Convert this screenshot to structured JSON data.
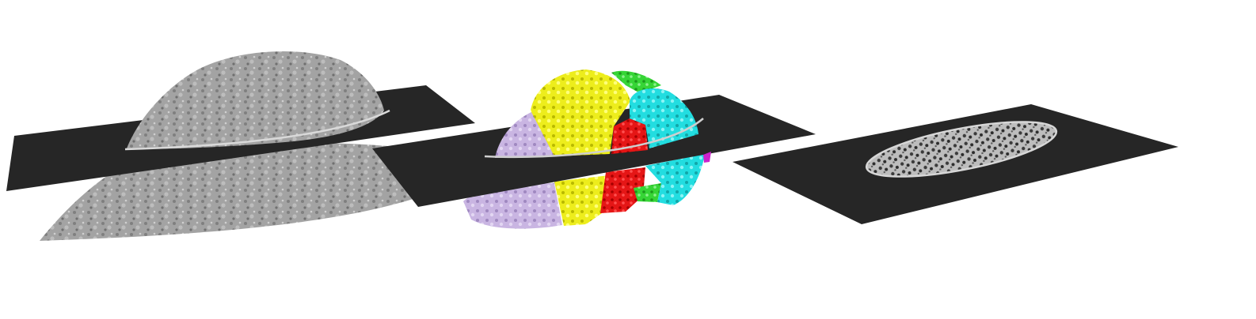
{
  "figure": {
    "panels": [
      {
        "id": "surface-rendering",
        "render": "grayscale-surface"
      },
      {
        "id": "segmentation-rendering",
        "render": "colored-segments"
      },
      {
        "id": "cross-section-slice",
        "render": "slice-texture"
      }
    ],
    "colors": {
      "background": "#ffffff",
      "slice_plane": "#262626",
      "surface_gray": "#9a9a9a",
      "segment_lilac": "#c8b4e0",
      "segment_yellow": "#eeee22",
      "segment_red": "#e81818",
      "segment_cyan": "#22dde0",
      "segment_green": "#33d633",
      "segment_magenta": "#cc22cc",
      "slice_texture_light": "#c8c8c8"
    }
  }
}
